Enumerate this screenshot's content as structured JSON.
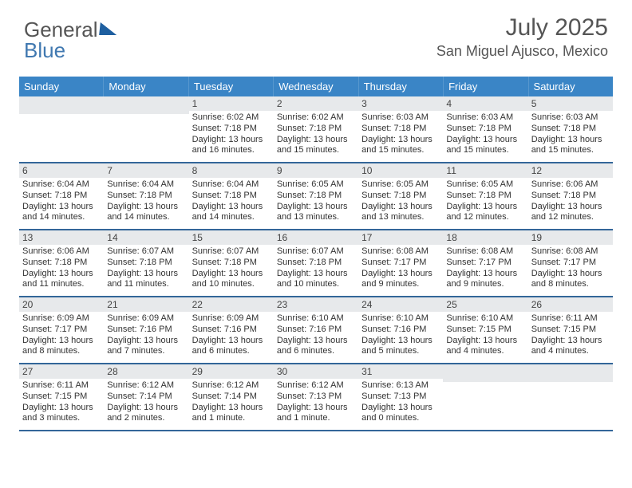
{
  "logo": {
    "text1": "General",
    "text2": "Blue"
  },
  "title": "July 2025",
  "location": "San Miguel Ajusco, Mexico",
  "dow": [
    "Sunday",
    "Monday",
    "Tuesday",
    "Wednesday",
    "Thursday",
    "Friday",
    "Saturday"
  ],
  "colors": {
    "header_bg": "#3a85c6",
    "rule": "#336699",
    "daynum_bg": "#e7e9eb",
    "text": "#333333"
  },
  "font": {
    "title_size": 30,
    "loc_size": 18,
    "dow_size": 13,
    "cell_size": 11
  },
  "grid": {
    "rows": 5,
    "cols": 7,
    "first_weekday": 2,
    "days_in_month": 31
  },
  "days": [
    {
      "n": "1",
      "sr": "6:02 AM",
      "ss": "7:18 PM",
      "dl": "13 hours and 16 minutes."
    },
    {
      "n": "2",
      "sr": "6:02 AM",
      "ss": "7:18 PM",
      "dl": "13 hours and 15 minutes."
    },
    {
      "n": "3",
      "sr": "6:03 AM",
      "ss": "7:18 PM",
      "dl": "13 hours and 15 minutes."
    },
    {
      "n": "4",
      "sr": "6:03 AM",
      "ss": "7:18 PM",
      "dl": "13 hours and 15 minutes."
    },
    {
      "n": "5",
      "sr": "6:03 AM",
      "ss": "7:18 PM",
      "dl": "13 hours and 15 minutes."
    },
    {
      "n": "6",
      "sr": "6:04 AM",
      "ss": "7:18 PM",
      "dl": "13 hours and 14 minutes."
    },
    {
      "n": "7",
      "sr": "6:04 AM",
      "ss": "7:18 PM",
      "dl": "13 hours and 14 minutes."
    },
    {
      "n": "8",
      "sr": "6:04 AM",
      "ss": "7:18 PM",
      "dl": "13 hours and 14 minutes."
    },
    {
      "n": "9",
      "sr": "6:05 AM",
      "ss": "7:18 PM",
      "dl": "13 hours and 13 minutes."
    },
    {
      "n": "10",
      "sr": "6:05 AM",
      "ss": "7:18 PM",
      "dl": "13 hours and 13 minutes."
    },
    {
      "n": "11",
      "sr": "6:05 AM",
      "ss": "7:18 PM",
      "dl": "13 hours and 12 minutes."
    },
    {
      "n": "12",
      "sr": "6:06 AM",
      "ss": "7:18 PM",
      "dl": "13 hours and 12 minutes."
    },
    {
      "n": "13",
      "sr": "6:06 AM",
      "ss": "7:18 PM",
      "dl": "13 hours and 11 minutes."
    },
    {
      "n": "14",
      "sr": "6:07 AM",
      "ss": "7:18 PM",
      "dl": "13 hours and 11 minutes."
    },
    {
      "n": "15",
      "sr": "6:07 AM",
      "ss": "7:18 PM",
      "dl": "13 hours and 10 minutes."
    },
    {
      "n": "16",
      "sr": "6:07 AM",
      "ss": "7:18 PM",
      "dl": "13 hours and 10 minutes."
    },
    {
      "n": "17",
      "sr": "6:08 AM",
      "ss": "7:17 PM",
      "dl": "13 hours and 9 minutes."
    },
    {
      "n": "18",
      "sr": "6:08 AM",
      "ss": "7:17 PM",
      "dl": "13 hours and 9 minutes."
    },
    {
      "n": "19",
      "sr": "6:08 AM",
      "ss": "7:17 PM",
      "dl": "13 hours and 8 minutes."
    },
    {
      "n": "20",
      "sr": "6:09 AM",
      "ss": "7:17 PM",
      "dl": "13 hours and 8 minutes."
    },
    {
      "n": "21",
      "sr": "6:09 AM",
      "ss": "7:16 PM",
      "dl": "13 hours and 7 minutes."
    },
    {
      "n": "22",
      "sr": "6:09 AM",
      "ss": "7:16 PM",
      "dl": "13 hours and 6 minutes."
    },
    {
      "n": "23",
      "sr": "6:10 AM",
      "ss": "7:16 PM",
      "dl": "13 hours and 6 minutes."
    },
    {
      "n": "24",
      "sr": "6:10 AM",
      "ss": "7:16 PM",
      "dl": "13 hours and 5 minutes."
    },
    {
      "n": "25",
      "sr": "6:10 AM",
      "ss": "7:15 PM",
      "dl": "13 hours and 4 minutes."
    },
    {
      "n": "26",
      "sr": "6:11 AM",
      "ss": "7:15 PM",
      "dl": "13 hours and 4 minutes."
    },
    {
      "n": "27",
      "sr": "6:11 AM",
      "ss": "7:15 PM",
      "dl": "13 hours and 3 minutes."
    },
    {
      "n": "28",
      "sr": "6:12 AM",
      "ss": "7:14 PM",
      "dl": "13 hours and 2 minutes."
    },
    {
      "n": "29",
      "sr": "6:12 AM",
      "ss": "7:14 PM",
      "dl": "13 hours and 1 minute."
    },
    {
      "n": "30",
      "sr": "6:12 AM",
      "ss": "7:13 PM",
      "dl": "13 hours and 1 minute."
    },
    {
      "n": "31",
      "sr": "6:13 AM",
      "ss": "7:13 PM",
      "dl": "13 hours and 0 minutes."
    }
  ],
  "labels": {
    "sunrise": "Sunrise:",
    "sunset": "Sunset:",
    "daylight": "Daylight:"
  }
}
